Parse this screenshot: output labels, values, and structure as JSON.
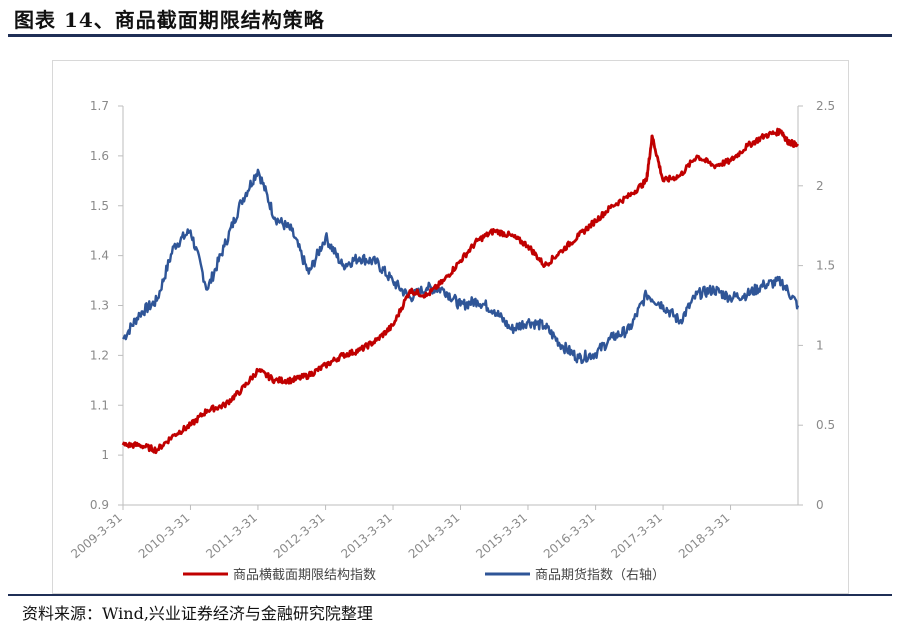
{
  "title": "图表 14、商品截面期限结构策略",
  "source": "资料来源：Wind,兴业证券经济与金融研究院整理",
  "chart_data": {
    "type": "line",
    "title": "",
    "xlabel": "",
    "ylabel_left": "",
    "ylabel_right": "",
    "x_ticks": [
      "2009-3-31",
      "2010-3-31",
      "2011-3-31",
      "2012-3-31",
      "2013-3-31",
      "2014-3-31",
      "2015-3-31",
      "2016-3-31",
      "2017-3-31",
      "2018-3-31"
    ],
    "x_range": [
      "2009-3-31",
      "2019-03-31"
    ],
    "y_left": {
      "min": 0.9,
      "max": 1.7,
      "ticks": [
        "0.9",
        "1",
        "1.1",
        "1.2",
        "1.3",
        "1.4",
        "1.5",
        "1.6",
        "1.7"
      ]
    },
    "y_right": {
      "min": 0,
      "max": 2.5,
      "ticks": [
        "0",
        "0.5",
        "1",
        "1.5",
        "2",
        "2.5"
      ]
    },
    "grid": false,
    "legend_position": "bottom",
    "series": [
      {
        "name": "商品横截面期限结构指数",
        "axis": "left",
        "color": "#c00000",
        "points": [
          [
            "2009-03-31",
            1.02
          ],
          [
            "2009-06-30",
            1.02
          ],
          [
            "2009-09-30",
            1.01
          ],
          [
            "2009-12-31",
            1.04
          ],
          [
            "2010-03-31",
            1.06
          ],
          [
            "2010-06-30",
            1.09
          ],
          [
            "2010-09-30",
            1.1
          ],
          [
            "2010-12-31",
            1.13
          ],
          [
            "2011-03-31",
            1.17
          ],
          [
            "2011-06-30",
            1.15
          ],
          [
            "2011-09-30",
            1.15
          ],
          [
            "2011-12-31",
            1.16
          ],
          [
            "2012-03-31",
            1.18
          ],
          [
            "2012-06-30",
            1.2
          ],
          [
            "2012-09-30",
            1.21
          ],
          [
            "2012-12-31",
            1.23
          ],
          [
            "2013-03-31",
            1.26
          ],
          [
            "2013-06-30",
            1.33
          ],
          [
            "2013-09-30",
            1.32
          ],
          [
            "2013-12-31",
            1.35
          ],
          [
            "2014-03-31",
            1.39
          ],
          [
            "2014-06-30",
            1.43
          ],
          [
            "2014-09-30",
            1.45
          ],
          [
            "2014-12-31",
            1.44
          ],
          [
            "2015-03-31",
            1.42
          ],
          [
            "2015-06-30",
            1.38
          ],
          [
            "2015-09-30",
            1.41
          ],
          [
            "2015-12-31",
            1.44
          ],
          [
            "2016-03-31",
            1.47
          ],
          [
            "2016-06-30",
            1.5
          ],
          [
            "2016-09-30",
            1.52
          ],
          [
            "2016-12-31",
            1.55
          ],
          [
            "2017-01-31",
            1.64
          ],
          [
            "2017-03-31",
            1.55
          ],
          [
            "2017-06-30",
            1.56
          ],
          [
            "2017-09-30",
            1.6
          ],
          [
            "2017-12-31",
            1.58
          ],
          [
            "2018-03-31",
            1.59
          ],
          [
            "2018-06-30",
            1.62
          ],
          [
            "2018-09-30",
            1.64
          ],
          [
            "2018-12-31",
            1.65
          ],
          [
            "2019-01-31",
            1.63
          ],
          [
            "2019-03-31",
            1.62
          ]
        ]
      },
      {
        "name": "商品期货指数（右轴）",
        "axis": "right",
        "color": "#2f5597",
        "points": [
          [
            "2009-03-31",
            1.04
          ],
          [
            "2009-06-30",
            1.2
          ],
          [
            "2009-09-30",
            1.28
          ],
          [
            "2009-12-31",
            1.62
          ],
          [
            "2010-03-31",
            1.72
          ],
          [
            "2010-06-30",
            1.35
          ],
          [
            "2010-09-30",
            1.62
          ],
          [
            "2010-12-31",
            1.9
          ],
          [
            "2011-03-31",
            2.1
          ],
          [
            "2011-06-30",
            1.8
          ],
          [
            "2011-09-30",
            1.72
          ],
          [
            "2011-12-31",
            1.45
          ],
          [
            "2012-03-31",
            1.68
          ],
          [
            "2012-06-30",
            1.5
          ],
          [
            "2012-09-30",
            1.55
          ],
          [
            "2012-12-31",
            1.52
          ],
          [
            "2013-03-31",
            1.4
          ],
          [
            "2013-06-30",
            1.3
          ],
          [
            "2013-09-30",
            1.36
          ],
          [
            "2013-12-31",
            1.35
          ],
          [
            "2014-03-31",
            1.25
          ],
          [
            "2014-06-30",
            1.28
          ],
          [
            "2014-09-30",
            1.22
          ],
          [
            "2014-12-31",
            1.1
          ],
          [
            "2015-03-31",
            1.15
          ],
          [
            "2015-06-30",
            1.12
          ],
          [
            "2015-09-30",
            1.0
          ],
          [
            "2015-12-31",
            0.92
          ],
          [
            "2016-03-31",
            0.95
          ],
          [
            "2016-06-30",
            1.05
          ],
          [
            "2016-09-30",
            1.1
          ],
          [
            "2016-12-31",
            1.32
          ],
          [
            "2017-03-31",
            1.25
          ],
          [
            "2017-06-30",
            1.15
          ],
          [
            "2017-09-30",
            1.32
          ],
          [
            "2017-12-31",
            1.35
          ],
          [
            "2018-03-31",
            1.3
          ],
          [
            "2018-06-30",
            1.32
          ],
          [
            "2018-09-30",
            1.38
          ],
          [
            "2018-12-31",
            1.4
          ],
          [
            "2019-03-31",
            1.25
          ]
        ]
      }
    ]
  }
}
